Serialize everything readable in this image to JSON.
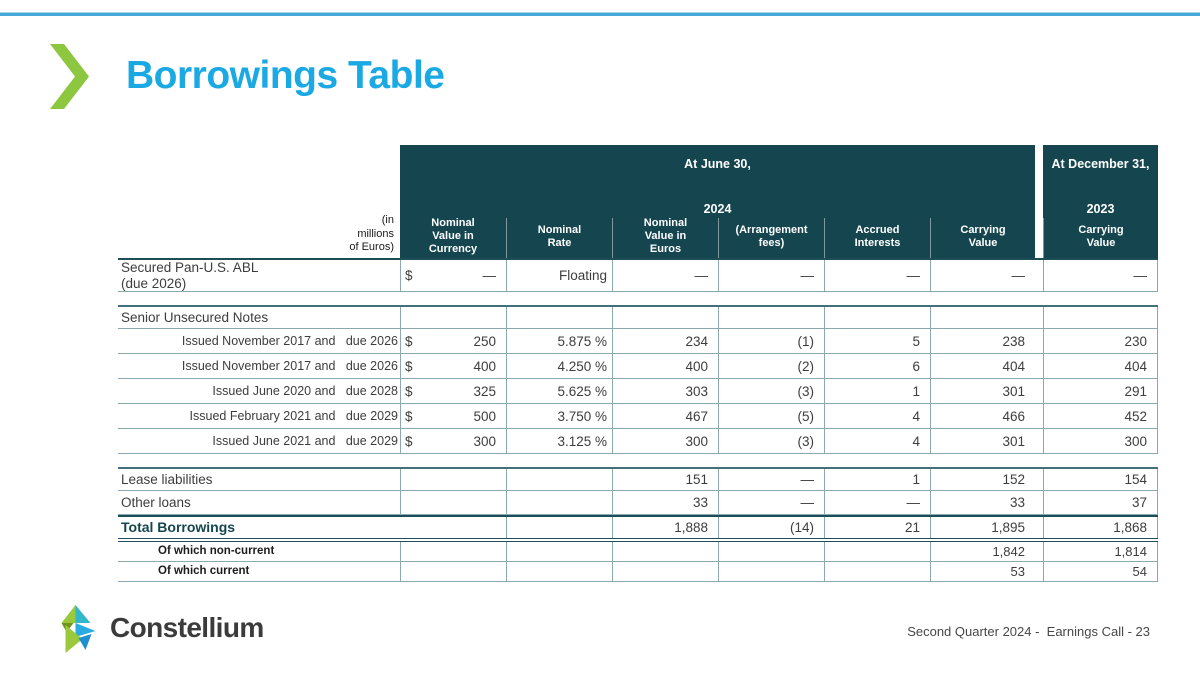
{
  "slide": {
    "title": "Borrowings Table",
    "brand": "Constellium",
    "footer_right": "Second Quarter 2024 -  Earnings Call - 23",
    "colors": {
      "accent_cyan": "#1ba9e4",
      "accent_green": "#8dc63f",
      "header_teal": "#15464f"
    }
  },
  "chart_data": {
    "type": "table",
    "title": "Borrowings Table",
    "units_note": "(in\nmillions\nof Euros)",
    "column_groups": [
      {
        "label": "At June 30,",
        "year": "2024",
        "span": 6
      },
      {
        "label": "At December 31,",
        "year": "2023",
        "span": 1
      }
    ],
    "columns": [
      "Nominal\nValue in\nCurrency",
      "Nominal\nRate",
      "Nominal\nValue in\nEuros",
      "(Arrangement\nfees)",
      "Accrued\nInterests",
      "Carrying\nValue",
      "Carrying\nValue"
    ],
    "rows": [
      {
        "kind": "multi",
        "label_lines": [
          "Secured Pan-U.S. ABL",
          "(due 2026)"
        ],
        "dollar": "$",
        "values": [
          "—",
          "Floating",
          "—",
          "—",
          "—",
          "—",
          "—"
        ]
      },
      {
        "kind": "spacer"
      },
      {
        "kind": "section",
        "label": "Senior Unsecured Notes",
        "values": [
          "",
          "",
          "",
          "",
          "",
          "",
          ""
        ]
      },
      {
        "kind": "issued",
        "label": "Issued November 2017 and   due 2026",
        "dollar": "$",
        "values": [
          "250",
          "5.875 %",
          "234",
          "(1)",
          "5",
          "238",
          "230"
        ]
      },
      {
        "kind": "issued",
        "label": "Issued November 2017 and   due 2026",
        "dollar": "$",
        "values": [
          "400",
          "4.250 %",
          "400",
          "(2)",
          "6",
          "404",
          "404"
        ]
      },
      {
        "kind": "issued",
        "label": "Issued June 2020 and   due 2028",
        "dollar": "$",
        "values": [
          "325",
          "5.625 %",
          "303",
          "(3)",
          "1",
          "301",
          "291"
        ]
      },
      {
        "kind": "issued",
        "label": "Issued February 2021 and   due 2029",
        "dollar": "$",
        "values": [
          "500",
          "3.750 %",
          "467",
          "(5)",
          "4",
          "466",
          "452"
        ]
      },
      {
        "kind": "issued",
        "label": "Issued June 2021 and   due 2029",
        "dollar": "$",
        "values": [
          "300",
          "3.125 %",
          "300",
          "(3)",
          "4",
          "301",
          "300"
        ]
      },
      {
        "kind": "spacer"
      },
      {
        "kind": "normal",
        "label": "Lease liabilities",
        "values": [
          "",
          "",
          "151",
          "—",
          "1",
          "152",
          "154"
        ]
      },
      {
        "kind": "normal",
        "label": "Other loans",
        "values": [
          "",
          "",
          "33",
          "—",
          "—",
          "33",
          "37"
        ]
      },
      {
        "kind": "total",
        "label": "Total Borrowings",
        "values": [
          "",
          "",
          "1,888",
          "(14)",
          "21",
          "1,895",
          "1,868"
        ]
      },
      {
        "kind": "subtotal",
        "label": "Of which non-current",
        "values": [
          "",
          "",
          "",
          "",
          "",
          "1,842",
          "1,814"
        ]
      },
      {
        "kind": "subtotal",
        "label": "Of which current",
        "values": [
          "",
          "",
          "",
          "",
          "",
          "53",
          "54"
        ]
      }
    ]
  }
}
